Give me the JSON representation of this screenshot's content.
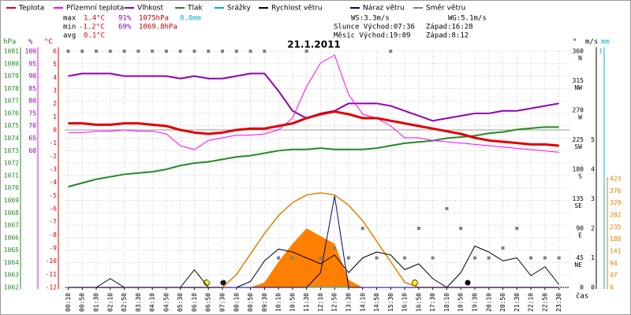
{
  "chart_data": {
    "type": "line",
    "title": "21.1.2011",
    "stats": {
      "max": {
        "label": "max",
        "temp": "1.4°C",
        "hum": "91%",
        "press": "1075hPa",
        "rain": "0.0mm"
      },
      "min": {
        "label": "min",
        "temp": "-1.2°C",
        "hum": "69%",
        "press": "1069.8hPa"
      },
      "avg": {
        "label": "avg",
        "temp": "0.1°C"
      }
    },
    "info": {
      "ws": "WS:3.3m/s",
      "wg": "WG:5.1m/s",
      "sun_rise": "Slunce Východ:07:36",
      "sun_set": "Západ:16:28",
      "moon_rise": "Měsíc Východ:19:09",
      "moon_set": "Západ:8:12"
    },
    "axis_titles": {
      "hpa": "hPa",
      "pct": "%",
      "temp": "°C",
      "dir": "°",
      "ms": "m/s",
      "mm": "mm",
      "x": "čas"
    },
    "x": [
      "00:10",
      "00:50",
      "01:30",
      "02:10",
      "02:50",
      "03:30",
      "04:10",
      "04:50",
      "05:30",
      "06:10",
      "06:50",
      "07:30",
      "08:10",
      "08:50",
      "09:30",
      "10:10",
      "10:50",
      "11:30",
      "12:10",
      "12:50",
      "13:30",
      "14:10",
      "14:50",
      "15:30",
      "16:10",
      "16:50",
      "17:30",
      "18:10",
      "18:50",
      "19:30",
      "20:10",
      "20:50",
      "21:30",
      "22:10",
      "22:50",
      "23:30"
    ],
    "ylim": [
      1062,
      1081
    ],
    "yticks": [
      1062,
      1063,
      1064,
      1065,
      1066,
      1067,
      1068,
      1069,
      1070,
      1071,
      1072,
      1073,
      1074,
      1075,
      1076,
      1077,
      1078,
      1079,
      1080,
      1081
    ],
    "y2lim": [
      5,
      100
    ],
    "y2ticks": [
      60,
      65,
      70,
      75,
      80,
      85,
      90,
      95,
      100
    ],
    "y3lim": [
      -12,
      6
    ],
    "y3ticks": [
      -12,
      -11,
      -10,
      -9,
      -8,
      -7,
      -6,
      -5,
      -4,
      -3,
      -2,
      -1,
      0,
      1,
      2,
      3,
      4,
      5,
      6
    ],
    "y4lim": [
      0,
      360
    ],
    "y4ticks": [
      0,
      45,
      90,
      135,
      180,
      225,
      270,
      315,
      360
    ],
    "y4names": [
      {
        "value": 45,
        "label": "NE"
      },
      {
        "value": 90,
        "label": "E"
      },
      {
        "value": 135,
        "label": "SE"
      },
      {
        "value": 180,
        "label": "S"
      },
      {
        "value": 225,
        "label": "SW"
      },
      {
        "value": 270,
        "label": "W"
      },
      {
        "value": 315,
        "label": "NW"
      },
      {
        "value": 360,
        "label": "N"
      }
    ],
    "y5lim": [
      0,
      8
    ],
    "y5ticks": [
      0,
      1,
      2,
      3,
      4,
      5
    ],
    "y6lim": [
      0,
      1
    ],
    "y6ticks": [
      1
    ],
    "y7lim": [
      0,
      423
    ],
    "y7ticks": [
      0,
      47,
      94,
      141,
      188,
      235,
      282,
      329,
      376,
      423
    ],
    "grid": true,
    "series": [
      {
        "name": "Teplota",
        "color": "#e00000",
        "axis": "y3",
        "width": 3,
        "values": [
          0.5,
          0.5,
          0.4,
          0.4,
          0.5,
          0.5,
          0.4,
          0.3,
          0.0,
          -0.2,
          -0.3,
          -0.2,
          0.0,
          0.1,
          0.1,
          0.3,
          0.5,
          0.9,
          1.2,
          1.4,
          1.2,
          0.9,
          0.9,
          0.7,
          0.5,
          0.3,
          0.1,
          -0.1,
          -0.3,
          -0.6,
          -0.8,
          -0.9,
          -1.0,
          -1.1,
          -1.1,
          -1.2
        ]
      },
      {
        "name": "Přízemní teplota",
        "color": "#ff00ff",
        "axis": "y3",
        "width": 1,
        "values": [
          -0.2,
          -0.2,
          -0.1,
          -0.1,
          0,
          -0.1,
          -0.1,
          -0.3,
          -1.2,
          -1.5,
          -0.8,
          -0.6,
          -0.4,
          -0.4,
          -0.3,
          0,
          0.9,
          3.3,
          5.1,
          5.7,
          2.7,
          1.2,
          0.9,
          0.3,
          -0.6,
          -0.6,
          -0.8,
          -0.9,
          -1.0,
          -1.1,
          -1.2,
          -1.3,
          -1.4,
          -1.5,
          -1.6,
          -1.7
        ]
      },
      {
        "name": "Vlhkost",
        "color": "#9000b0",
        "axis": "y2",
        "width": 2,
        "values": [
          90,
          91,
          91,
          91,
          90,
          90,
          90,
          90,
          89,
          90,
          89,
          89,
          90,
          91,
          91,
          84,
          76,
          73,
          75,
          76,
          79,
          79,
          79,
          78,
          76,
          74,
          72,
          73,
          74,
          75,
          75,
          76,
          76,
          77,
          78,
          79
        ]
      },
      {
        "name": "Tlak",
        "color": "#228b22",
        "axis": "y",
        "width": 2,
        "values": [
          1070.1,
          1070.4,
          1070.7,
          1070.9,
          1071.1,
          1071.2,
          1071.3,
          1071.5,
          1071.8,
          1072.0,
          1072.1,
          1072.3,
          1072.5,
          1072.6,
          1072.8,
          1073.0,
          1073.1,
          1073.1,
          1073.2,
          1073.1,
          1073.1,
          1073.1,
          1073.2,
          1073.4,
          1073.6,
          1073.7,
          1073.8,
          1074.0,
          1074.1,
          1074.2,
          1074.4,
          1074.5,
          1074.7,
          1074.8,
          1074.9,
          1074.9
        ]
      },
      {
        "name": "Srážky",
        "color": "#00b0d0",
        "axis": "y6",
        "width": 1,
        "values": [
          0,
          0,
          0,
          0,
          0,
          0,
          0,
          0,
          0,
          0,
          0,
          0,
          0,
          0,
          0,
          0,
          0,
          0,
          0,
          0,
          0,
          0,
          0,
          0,
          0,
          0,
          0,
          0,
          0,
          0,
          0,
          0,
          0,
          0,
          0,
          0
        ]
      },
      {
        "name": "Rychlost větru",
        "color": "#000000",
        "axis": "y5",
        "width": 1,
        "values": [
          0,
          0,
          0,
          0.3,
          0,
          0,
          0,
          0,
          0,
          0.6,
          0,
          0,
          0,
          0.2,
          0.9,
          1.3,
          1.2,
          1.0,
          0.8,
          1.1,
          0.5,
          1.0,
          1.2,
          1.1,
          0.6,
          0.8,
          0.3,
          0,
          0.5,
          1.4,
          1.2,
          0.9,
          1.0,
          0.4,
          0.7,
          0.1
        ]
      },
      {
        "name": "Náraz větru",
        "color": "#000080",
        "axis": "y5",
        "width": 1,
        "values": [
          0,
          0,
          0,
          0,
          0,
          0,
          0,
          0,
          0,
          0,
          0,
          0,
          0,
          0,
          0,
          0,
          0,
          0,
          0.5,
          3.1,
          0,
          0,
          0,
          0,
          0,
          0,
          0,
          0,
          0,
          0,
          0,
          0,
          0,
          0,
          0,
          0
        ]
      },
      {
        "name": "Směr větru",
        "color": "#808080",
        "axis": "y4",
        "marker": "square",
        "values": [
          360,
          360,
          360,
          360,
          360,
          360,
          360,
          360,
          360,
          360,
          360,
          360,
          360,
          360,
          360,
          45,
          45,
          360,
          45,
          60,
          45,
          90,
          45,
          360,
          45,
          90,
          45,
          120,
          90,
          45,
          45,
          60,
          90,
          45,
          45,
          45
        ]
      }
    ],
    "radiation_theoretical": {
      "color": "#e08000",
      "axis": "y7",
      "values": [
        0,
        0,
        0,
        0,
        0,
        0,
        0,
        0,
        0,
        0,
        0,
        0,
        50,
        130,
        210,
        280,
        330,
        360,
        368,
        360,
        320,
        260,
        180,
        100,
        20,
        0,
        0,
        0,
        0,
        0,
        0,
        0,
        0,
        0,
        0,
        0
      ]
    },
    "radiation_measured": {
      "color": "#ff8000",
      "axis": "y7",
      "values": [
        0,
        0,
        0,
        0,
        0,
        0,
        0,
        0,
        0,
        0,
        0,
        0,
        0,
        0,
        20,
        100,
        170,
        230,
        200,
        170,
        30,
        0,
        0,
        0,
        0,
        0,
        0,
        0,
        0,
        0,
        0,
        0,
        0,
        0,
        0,
        0
      ]
    }
  }
}
